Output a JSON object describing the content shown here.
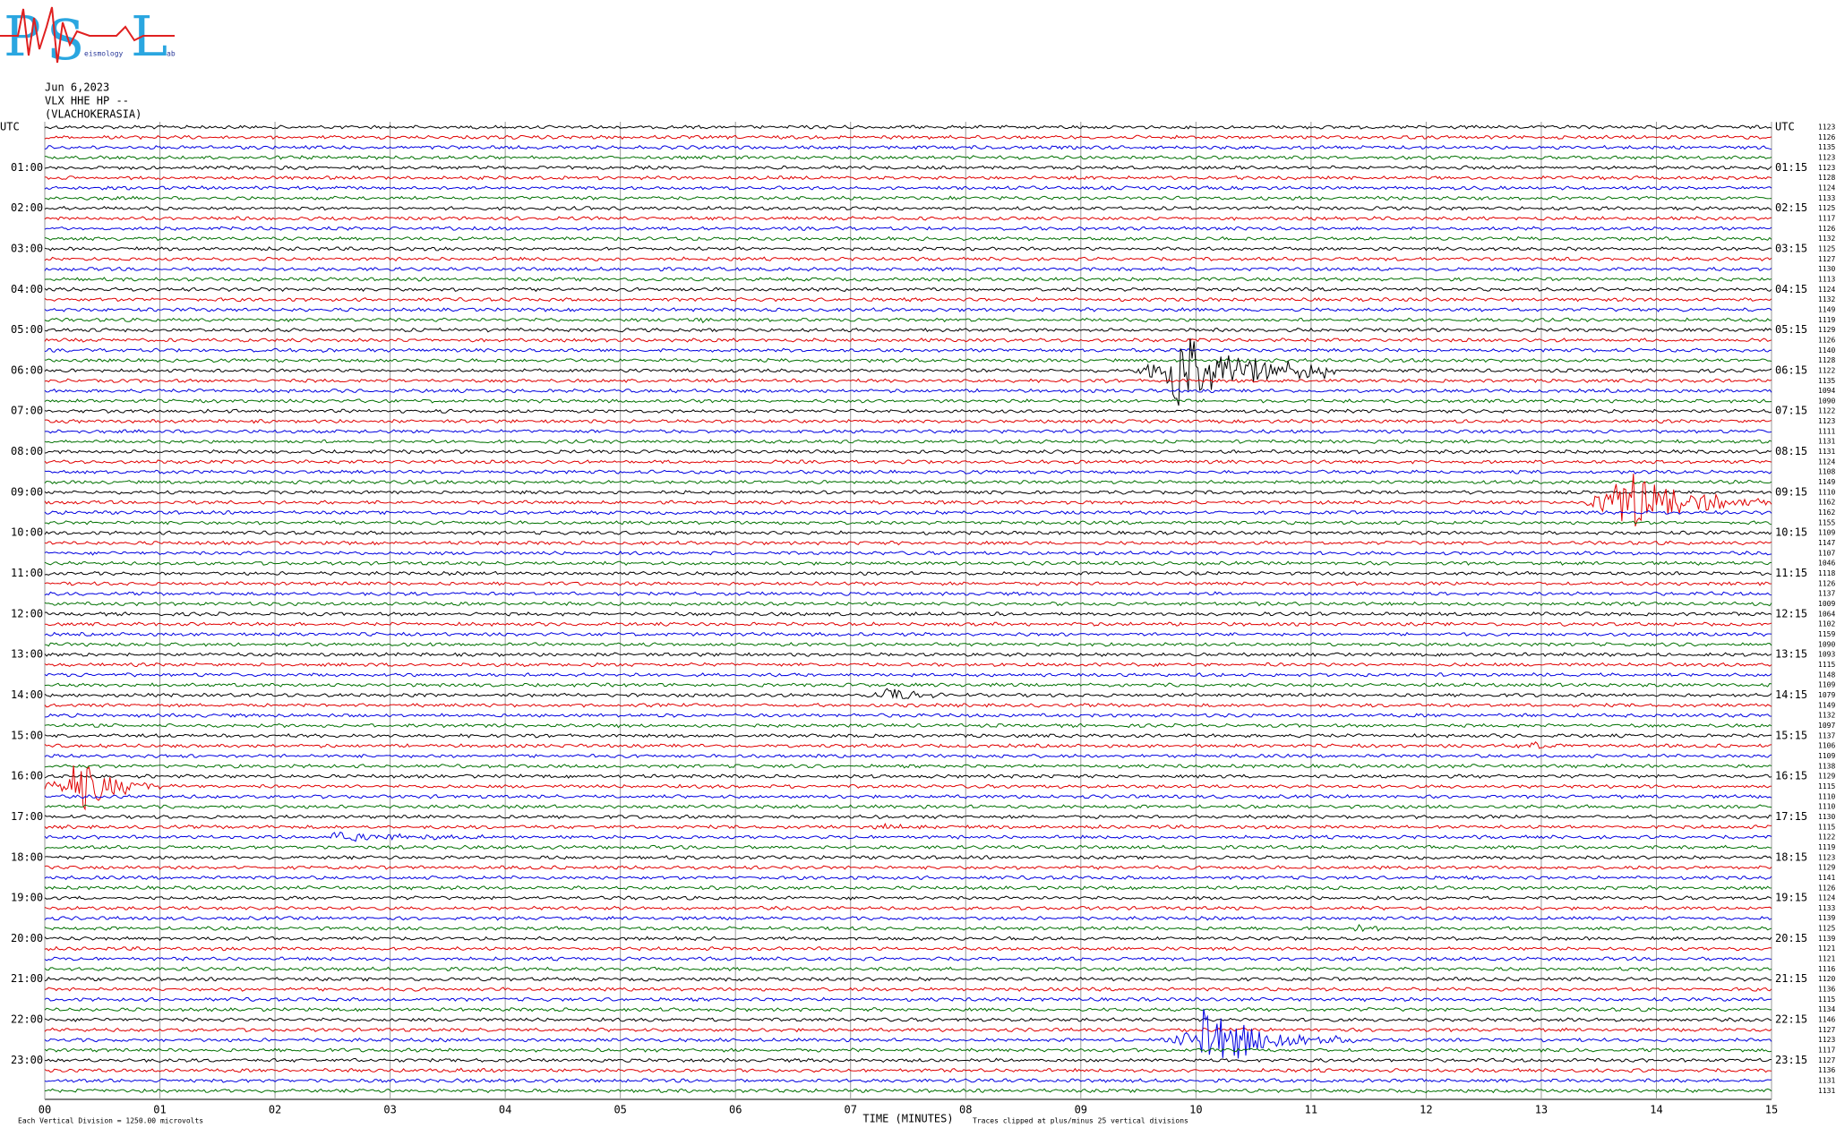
{
  "logo": {
    "p": "P",
    "s": "S",
    "l": "L",
    "sub1": "eismology",
    "sub2": "ab"
  },
  "header": {
    "date": "Jun 6,2023",
    "station": "VLX HHE HP --",
    "site": "(VLACHOKERASIA)"
  },
  "left_labels": [
    "UTC",
    "01:00",
    "02:00",
    "03:00",
    "04:00",
    "05:00",
    "06:00",
    "07:00",
    "08:00",
    "09:00",
    "10:00",
    "11:00",
    "12:00",
    "13:00",
    "14:00",
    "15:00",
    "16:00",
    "17:00",
    "18:00",
    "19:00",
    "20:00",
    "21:00",
    "22:00",
    "23:00"
  ],
  "right_labels": [
    "UTC",
    "01:15",
    "02:15",
    "03:15",
    "04:15",
    "05:15",
    "06:15",
    "07:15",
    "08:15",
    "09:15",
    "10:15",
    "11:15",
    "12:15",
    "13:15",
    "14:15",
    "15:15",
    "16:15",
    "17:15",
    "18:15",
    "19:15",
    "20:15",
    "21:15",
    "22:15",
    "23:15"
  ],
  "row_values": [
    "1123",
    "1126",
    "1135",
    "1123",
    "1123",
    "1128",
    "1124",
    "1133",
    "1125",
    "1117",
    "1126",
    "1132",
    "1125",
    "1127",
    "1130",
    "1113",
    "1124",
    "1132",
    "1149",
    "1119",
    "1129",
    "1126",
    "1140",
    "1128",
    "1122",
    "1135",
    "1094",
    "1090",
    "1122",
    "1123",
    "1111",
    "1131",
    "1131",
    "1124",
    "1108",
    "1149",
    "1110",
    "1162",
    "1162",
    "1155",
    "1109",
    "1147",
    "1107",
    "1046",
    "1118",
    "1126",
    "1137",
    "1009",
    "1064",
    "1102",
    "1159",
    "1090",
    "1093",
    "1115",
    "1148",
    "1109",
    "1079",
    "1149",
    "1132",
    "1097",
    "1137",
    "1106",
    "1109",
    "1138",
    "1129",
    "1115",
    "1110",
    "1110",
    "1130",
    "1115",
    "1122",
    "1119",
    "1123",
    "1129",
    "1141",
    "1126",
    "1124",
    "1133",
    "1139",
    "1125",
    "1139",
    "1121",
    "1121",
    "1116",
    "1120",
    "1136",
    "1115",
    "1134",
    "1146",
    "1127",
    "1123",
    "1117",
    "1127",
    "1136",
    "1131",
    "1131"
  ],
  "x_axis": {
    "title": "TIME (MINUTES)",
    "ticks": [
      {
        "value": 0,
        "label": "00"
      },
      {
        "value": 1,
        "label": "01"
      },
      {
        "value": 2,
        "label": "02"
      },
      {
        "value": 3,
        "label": "03"
      },
      {
        "value": 4,
        "label": "04"
      },
      {
        "value": 5,
        "label": "05"
      },
      {
        "value": 6,
        "label": "06"
      },
      {
        "value": 7,
        "label": "07"
      },
      {
        "value": 8,
        "label": "08"
      },
      {
        "value": 9,
        "label": "09"
      },
      {
        "value": 10,
        "label": "10"
      },
      {
        "value": 11,
        "label": "11"
      },
      {
        "value": 12,
        "label": "12"
      },
      {
        "value": 13,
        "label": "13"
      },
      {
        "value": 14,
        "label": "14"
      },
      {
        "value": 15,
        "label": "15"
      }
    ]
  },
  "footer": {
    "scale": "Each Vertical Division = 1250.00 microvolts",
    "clip": "Traces clipped at plus/minus 25 vertical divisions"
  }
}
